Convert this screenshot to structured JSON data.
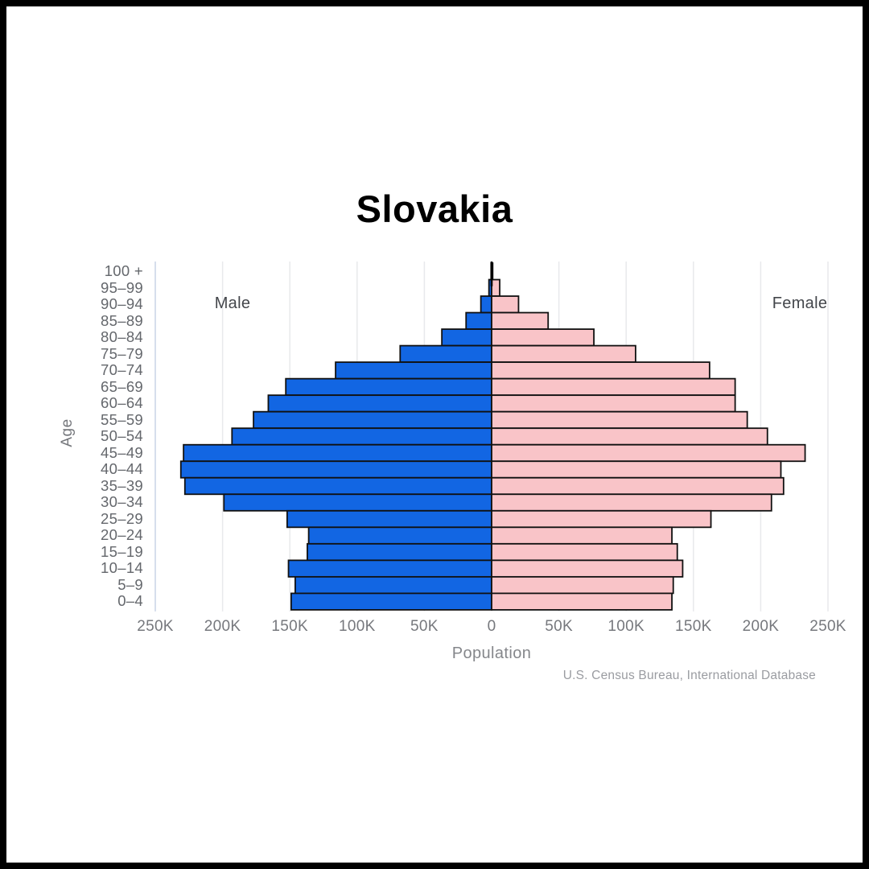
{
  "page": {
    "background": "#ffffff",
    "frame_color": "#000000"
  },
  "chart_data": {
    "type": "bar",
    "subtype": "population-pyramid",
    "title": "Slovakia",
    "xlabel": "Population",
    "ylabel": "Age",
    "source": "U.S. Census Bureau, International Database",
    "left_series_label": "Male",
    "right_series_label": "Female",
    "age_groups": [
      "100 +",
      "95–99",
      "90–94",
      "85–89",
      "80–84",
      "75–79",
      "70–74",
      "65–69",
      "60–64",
      "55–59",
      "50–54",
      "45–49",
      "40–44",
      "35–39",
      "30–34",
      "25–29",
      "20–24",
      "15–19",
      "10–14",
      "5–9",
      "0–4"
    ],
    "series": [
      {
        "name": "Male",
        "side": "left",
        "color": "#1266e3",
        "values_thousands": [
          0.4,
          2,
          8,
          19,
          37,
          68,
          116,
          153,
          166,
          177,
          193,
          229,
          231,
          228,
          199,
          152,
          136,
          137,
          151,
          146,
          149
        ]
      },
      {
        "name": "Female",
        "side": "right",
        "color": "#f9c4c8",
        "values_thousands": [
          0.8,
          6,
          20,
          42,
          76,
          107,
          162,
          181,
          181,
          190,
          205,
          233,
          215,
          217,
          208,
          163,
          134,
          138,
          142,
          135,
          134
        ]
      }
    ],
    "x_ticks": [
      "250K",
      "200K",
      "150K",
      "100K",
      "50K",
      "0",
      "50K",
      "100K",
      "150K",
      "200K",
      "250K"
    ],
    "x_tick_values_thousands": [
      -250,
      -200,
      -150,
      -100,
      -50,
      0,
      50,
      100,
      150,
      200,
      250
    ],
    "xlim_thousands": [
      -250,
      250
    ],
    "grid": true,
    "bar_border_color": "#111111",
    "grid_color": "#e8e9ec",
    "first_grid_color": "#c9d3e6",
    "axis_zero_line_color": "#000000"
  }
}
